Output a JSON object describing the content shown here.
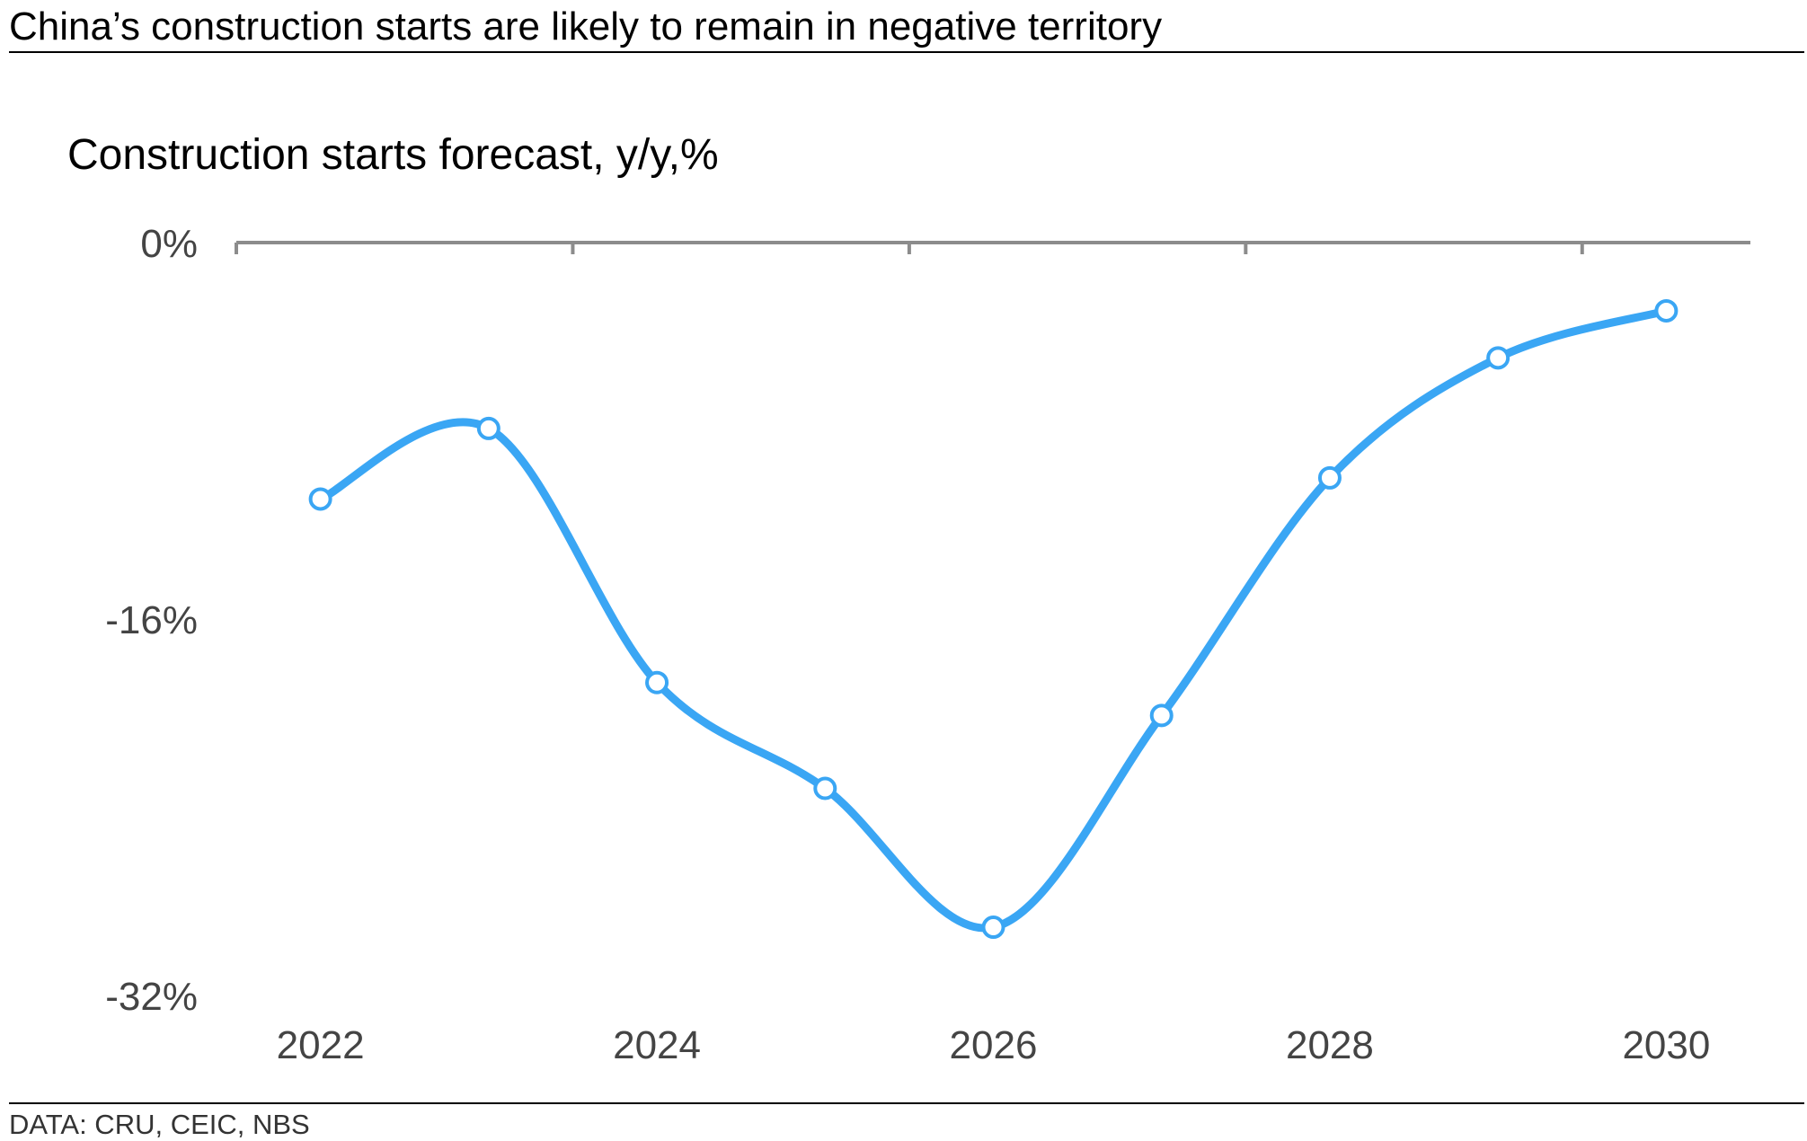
{
  "headline": "China’s construction starts are likely to remain in negative territory",
  "source": "DATA: CRU, CEIC, NBS",
  "colors": {
    "line": "#3aa6f4",
    "axis": "#8c8c8c",
    "rule": "#000000",
    "marker_fill": "#ffffff"
  },
  "chart_data": {
    "type": "line",
    "title": "Construction starts forecast, y/y,%",
    "xlabel": "",
    "ylabel": "",
    "x": [
      2022,
      2023,
      2024,
      2025,
      2026,
      2027,
      2028,
      2029,
      2030
    ],
    "series": [
      {
        "values": [
          -10.9,
          -7.9,
          -18.7,
          -23.2,
          -29.1,
          -20.1,
          -10.0,
          -4.9,
          -2.9
        ]
      }
    ],
    "xticks": [
      "2022",
      "2024",
      "2026",
      "2028",
      "2030"
    ],
    "yticks": [
      "0%",
      "-16%",
      "-32%"
    ],
    "ylim": [
      -32,
      0
    ],
    "xlim": [
      2021.5,
      2030.5
    ],
    "grid": false,
    "markers": "hollow circles",
    "smooth": true
  }
}
